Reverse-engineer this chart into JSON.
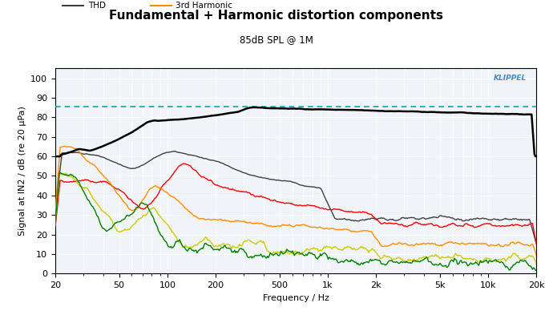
{
  "title": "Fundamental + Harmonic distortion components",
  "subtitle": "85dB SPL @ 1M",
  "ylabel": "Signal at IN2 / dB (re 20 μPa)",
  "xlabel": "Frequency / Hz",
  "ylim": [
    0,
    105
  ],
  "yticks": [
    0,
    10,
    20,
    30,
    40,
    50,
    60,
    70,
    80,
    90,
    100
  ],
  "fund_mean": 85.5,
  "colors": {
    "fundamental": "#000000",
    "thd": "#404040",
    "harm2": "#ff0000",
    "harm3": "#ff8c00",
    "harm4": "#cccc00",
    "harm5": "#008000",
    "fund_mean": "#00aaaa"
  },
  "klippel_color": "#4488cc",
  "background_plot": "#f0f4f8",
  "grid_color": "#ffffff"
}
